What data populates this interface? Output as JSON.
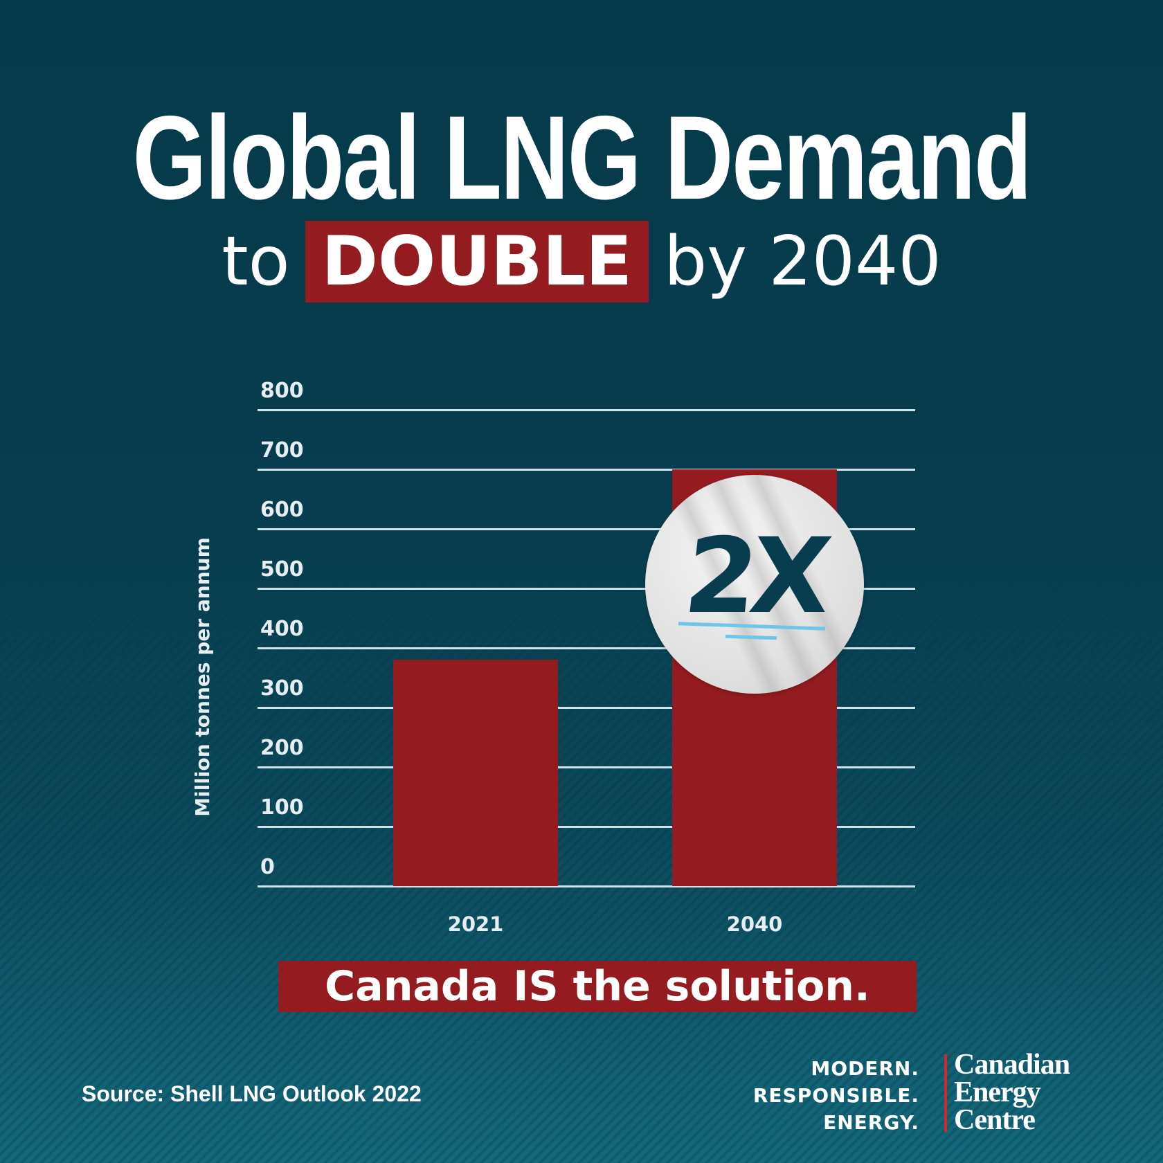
{
  "header": {
    "title": "Global LNG Demand",
    "subtitle_prefix": "to",
    "subtitle_highlight": "DOUBLE",
    "subtitle_suffix": "by 2040"
  },
  "colors": {
    "background_top": "#063a4b",
    "background_bottom": "#14697d",
    "bar": "#941c20",
    "highlight_box": "#941c20",
    "gridline": "#cfe3ea",
    "sticker_text": "#073d4e",
    "sticker_underline": "#6ec6e8",
    "logo_divider": "#d02a2a"
  },
  "chart_data": {
    "type": "bar",
    "title": "Global LNG Demand to DOUBLE by 2040",
    "categories": [
      "2021",
      "2040"
    ],
    "values": [
      380,
      700
    ],
    "xlabel": "",
    "ylabel": "Million tonnes per annum",
    "ylim": [
      0,
      800
    ],
    "yticks": [
      "0",
      "100",
      "200",
      "300",
      "400",
      "500",
      "600",
      "700",
      "800"
    ],
    "grid": true,
    "legend": null,
    "annotation": "2X"
  },
  "sticker": {
    "label": "2X"
  },
  "cta": {
    "text": "Canada IS the solution."
  },
  "footer": {
    "source": "Source: Shell LNG Outlook 2022",
    "tagline": [
      "MODERN.",
      "RESPONSIBLE.",
      "ENERGY."
    ],
    "logo": [
      "Canadian",
      "Energy",
      "Centre"
    ]
  }
}
